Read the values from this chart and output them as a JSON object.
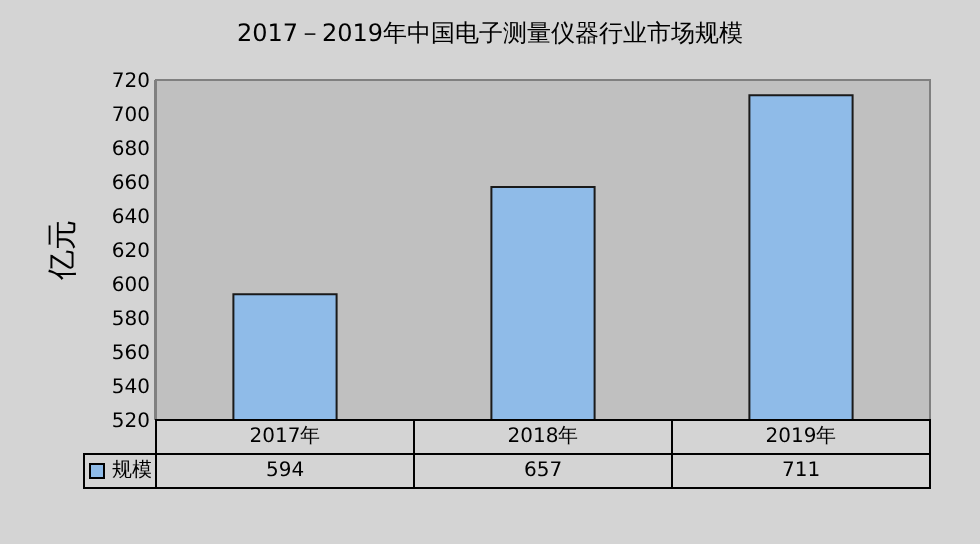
{
  "chart_data": {
    "type": "bar",
    "title": "2017－2019年中国电子测量仪器行业市场规模",
    "ylabel": "亿元",
    "categories": [
      "2017年",
      "2018年",
      "2019年"
    ],
    "series": [
      {
        "name": "规模",
        "color": "#8fbbe8",
        "values": [
          594,
          657,
          711
        ]
      }
    ],
    "ylim": [
      520,
      720
    ],
    "yticks": [
      520,
      540,
      560,
      580,
      600,
      620,
      640,
      660,
      680,
      700,
      720
    ],
    "grid": false,
    "legend": "bottom left",
    "data_labels": true
  }
}
